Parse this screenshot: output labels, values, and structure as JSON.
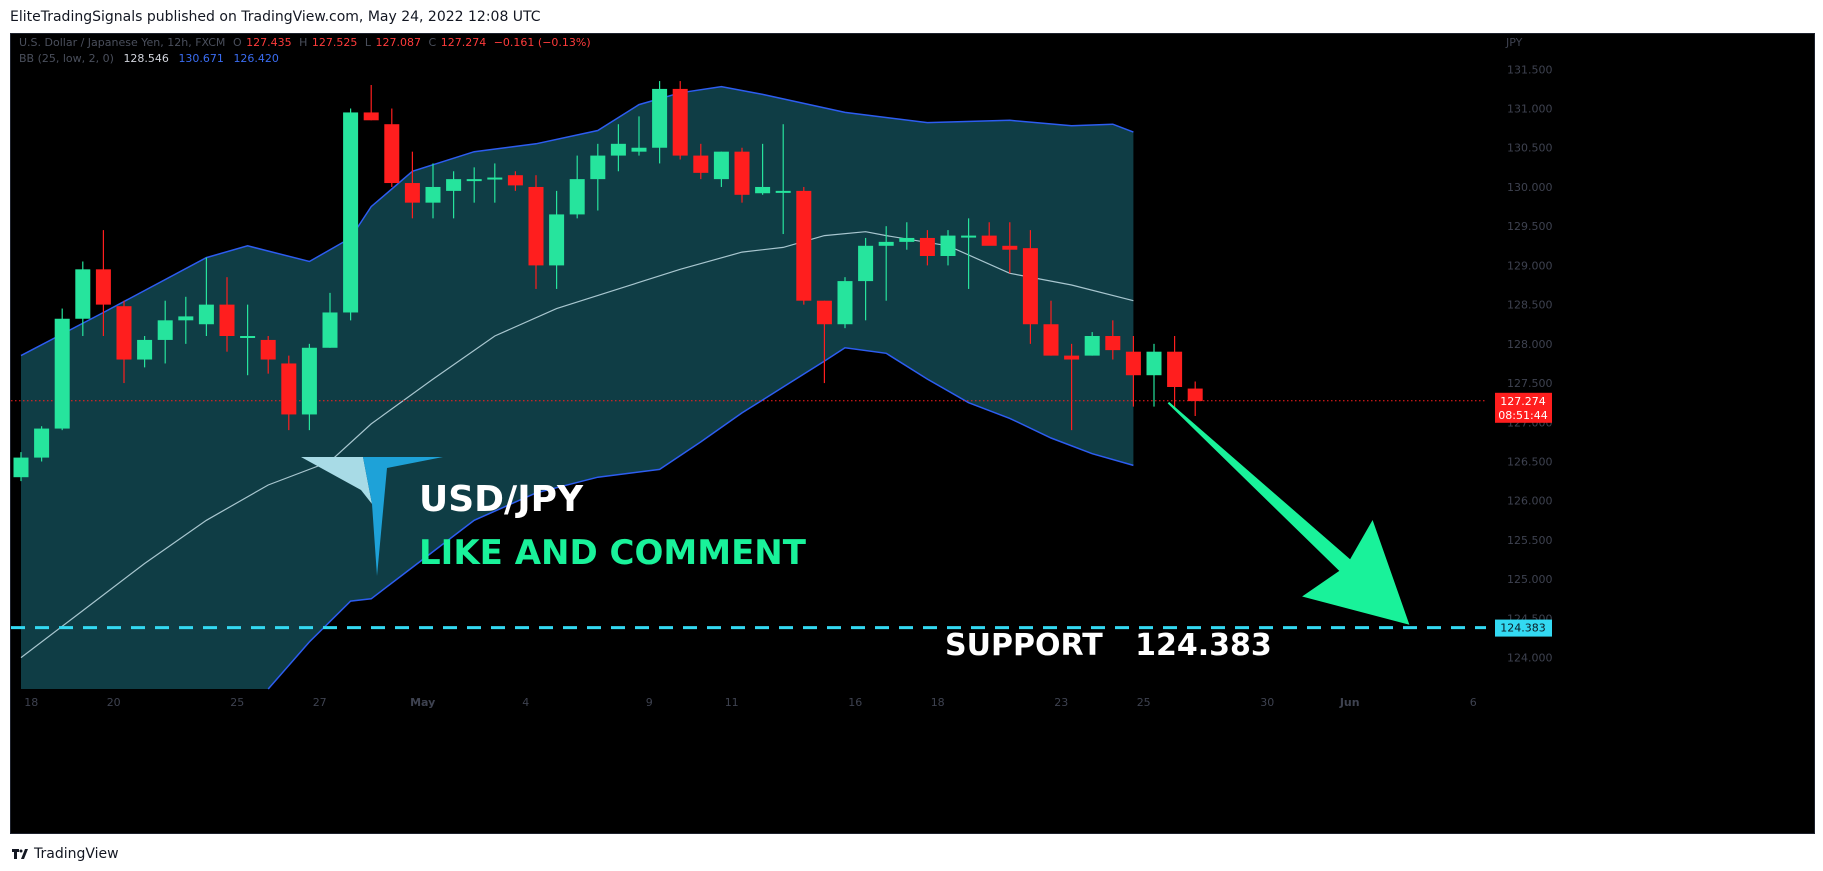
{
  "header": {
    "text": "EliteTradingSignals published on TradingView.com, May 24, 2022 12:08 UTC"
  },
  "footer": {
    "brand": "TradingView"
  },
  "legend": {
    "symbol": "U.S. Dollar / Japanese Yen, 12h, FXCM",
    "o_label": "O",
    "o_value": "127.435",
    "h_label": "H",
    "h_value": "127.525",
    "l_label": "L",
    "l_value": "127.087",
    "c_label": "C",
    "c_value": "127.274",
    "change": "−0.161 (−0.13%)",
    "bb_label": "BB (25, low, 2, 0)",
    "bb_basis": "128.546",
    "bb_upper": "130.671",
    "bb_lower": "126.420"
  },
  "overlay": {
    "pair": "USD/JPY",
    "cta": "LIKE AND COMMENT",
    "support_label": "SUPPORT",
    "support_value": "124.383"
  },
  "price_axis": {
    "currency": "JPY"
  },
  "price_tag": {
    "price": "127.274",
    "countdown": "08:51:44"
  },
  "support_tag": {
    "price": "124.383"
  },
  "colors": {
    "up": "#26e49d",
    "down": "#ff1e1e",
    "band_fill": "#0f3d45",
    "band_line": "#2d5df0",
    "basis_line": "#a8c6cf",
    "support": "#33d9f2",
    "arrow": "#19f29a",
    "price_tag": "#ff1e1e",
    "support_tag": "#33d9f2"
  },
  "chart_data": {
    "type": "candlestick",
    "title": "U.S. Dollar / Japanese Yen, 12h, FXCM",
    "ylim": [
      123.6,
      131.95
    ],
    "y_ticks": [
      "124.000",
      "124.500",
      "125.000",
      "125.500",
      "126.000",
      "126.500",
      "127.000",
      "127.500",
      "128.000",
      "128.500",
      "129.000",
      "129.500",
      "130.000",
      "130.500",
      "131.000",
      "131.500"
    ],
    "x_ticks": [
      {
        "label": "18",
        "x": 0.5
      },
      {
        "label": "20",
        "x": 4.5
      },
      {
        "label": "25",
        "x": 10.5
      },
      {
        "label": "27",
        "x": 14.5
      },
      {
        "label": "May",
        "x": 19.5
      },
      {
        "label": "4",
        "x": 24.5
      },
      {
        "label": "9",
        "x": 30.5
      },
      {
        "label": "11",
        "x": 34.5
      },
      {
        "label": "16",
        "x": 40.5
      },
      {
        "label": "18",
        "x": 44.5
      },
      {
        "label": "23",
        "x": 50.5
      },
      {
        "label": "25",
        "x": 54.5
      },
      {
        "label": "30",
        "x": 60.5
      },
      {
        "label": "Jun",
        "x": 64.5
      },
      {
        "label": "6",
        "x": 70.5
      }
    ],
    "candles": [
      [
        126.3,
        126.62,
        126.25,
        126.55
      ],
      [
        126.55,
        126.95,
        126.5,
        126.92
      ],
      [
        126.92,
        128.45,
        126.9,
        128.32
      ],
      [
        128.32,
        129.05,
        128.1,
        128.95
      ],
      [
        128.95,
        129.45,
        128.1,
        128.5
      ],
      [
        128.48,
        128.55,
        127.5,
        127.8
      ],
      [
        127.8,
        128.1,
        127.7,
        128.05
      ],
      [
        128.05,
        128.55,
        127.75,
        128.3
      ],
      [
        128.3,
        128.6,
        128.0,
        128.35
      ],
      [
        128.25,
        129.1,
        128.1,
        128.5
      ],
      [
        128.5,
        128.85,
        127.9,
        128.1
      ],
      [
        128.1,
        128.5,
        127.6,
        128.1
      ],
      [
        128.05,
        128.1,
        127.62,
        127.8
      ],
      [
        127.75,
        127.85,
        126.9,
        127.1
      ],
      [
        127.1,
        128.0,
        126.9,
        127.95
      ],
      [
        127.95,
        128.65,
        127.95,
        128.4
      ],
      [
        128.4,
        131.0,
        128.3,
        130.95
      ],
      [
        130.95,
        131.3,
        130.85,
        130.85
      ],
      [
        130.8,
        131.0,
        130.0,
        130.05
      ],
      [
        130.05,
        130.45,
        129.6,
        129.8
      ],
      [
        129.8,
        130.3,
        129.6,
        130.0
      ],
      [
        129.95,
        130.2,
        129.6,
        130.1
      ],
      [
        130.1,
        130.25,
        129.8,
        130.1
      ],
      [
        130.12,
        130.3,
        129.8,
        130.12
      ],
      [
        130.15,
        130.2,
        129.95,
        130.02
      ],
      [
        130.0,
        130.15,
        128.7,
        129.0
      ],
      [
        129.0,
        129.95,
        128.7,
        129.65
      ],
      [
        129.65,
        130.4,
        129.6,
        130.1
      ],
      [
        130.1,
        130.55,
        129.7,
        130.4
      ],
      [
        130.4,
        130.8,
        130.2,
        130.55
      ],
      [
        130.45,
        130.9,
        130.4,
        130.5
      ],
      [
        130.5,
        131.35,
        130.3,
        131.25
      ],
      [
        131.25,
        131.35,
        130.35,
        130.4
      ],
      [
        130.4,
        130.55,
        130.1,
        130.18
      ],
      [
        130.1,
        130.45,
        130.0,
        130.45
      ],
      [
        130.45,
        130.5,
        129.8,
        129.9
      ],
      [
        129.92,
        130.55,
        129.9,
        130.0
      ],
      [
        129.95,
        130.8,
        129.4,
        129.95
      ],
      [
        129.95,
        130.0,
        128.5,
        128.55
      ],
      [
        128.55,
        128.55,
        127.5,
        128.25
      ],
      [
        128.25,
        128.85,
        128.2,
        128.8
      ],
      [
        128.8,
        129.35,
        128.3,
        129.25
      ],
      [
        129.25,
        129.5,
        128.55,
        129.3
      ],
      [
        129.3,
        129.55,
        129.2,
        129.35
      ],
      [
        129.35,
        129.45,
        129.0,
        129.12
      ],
      [
        129.12,
        129.45,
        129.0,
        129.38
      ],
      [
        129.38,
        129.6,
        128.7,
        129.38
      ],
      [
        129.38,
        129.55,
        129.3,
        129.25
      ],
      [
        129.25,
        129.55,
        128.9,
        129.2
      ],
      [
        129.22,
        129.45,
        128.0,
        128.25
      ],
      [
        128.25,
        128.55,
        127.85,
        127.85
      ],
      [
        127.85,
        128.0,
        126.9,
        127.8
      ],
      [
        127.85,
        128.15,
        127.85,
        128.1
      ],
      [
        128.1,
        128.3,
        127.8,
        127.92
      ],
      [
        127.9,
        128.1,
        127.2,
        127.6
      ],
      [
        127.6,
        128.0,
        127.2,
        127.9
      ],
      [
        127.9,
        128.1,
        127.18,
        127.45
      ],
      [
        127.43,
        127.52,
        127.08,
        127.27
      ]
    ],
    "bb_upper": [
      [
        0,
        127.85
      ],
      [
        4,
        128.4
      ],
      [
        9,
        129.1
      ],
      [
        11,
        129.25
      ],
      [
        14,
        129.05
      ],
      [
        16,
        129.35
      ],
      [
        17,
        129.75
      ],
      [
        19,
        130.2
      ],
      [
        22,
        130.45
      ],
      [
        25,
        130.55
      ],
      [
        28,
        130.72
      ],
      [
        30,
        131.05
      ],
      [
        32,
        131.2
      ],
      [
        34,
        131.28
      ],
      [
        36,
        131.18
      ],
      [
        40,
        130.95
      ],
      [
        44,
        130.82
      ],
      [
        48,
        130.85
      ],
      [
        51,
        130.78
      ],
      [
        53,
        130.8
      ],
      [
        54,
        130.7
      ]
    ],
    "bb_basis": [
      [
        0,
        124.0
      ],
      [
        3,
        124.6
      ],
      [
        6,
        125.2
      ],
      [
        9,
        125.75
      ],
      [
        12,
        126.2
      ],
      [
        15,
        126.5
      ],
      [
        17,
        126.98
      ],
      [
        20,
        127.55
      ],
      [
        23,
        128.1
      ],
      [
        26,
        128.45
      ],
      [
        29,
        128.7
      ],
      [
        32,
        128.95
      ],
      [
        35,
        129.17
      ],
      [
        37,
        129.23
      ],
      [
        39,
        129.38
      ],
      [
        41,
        129.43
      ],
      [
        42,
        129.38
      ],
      [
        45,
        129.25
      ],
      [
        48,
        128.9
      ],
      [
        51,
        128.75
      ],
      [
        54,
        128.55
      ]
    ],
    "bb_lower": [
      [
        12,
        123.6
      ],
      [
        14,
        124.2
      ],
      [
        16,
        124.72
      ],
      [
        17,
        124.75
      ],
      [
        19,
        125.15
      ],
      [
        22,
        125.75
      ],
      [
        25,
        126.1
      ],
      [
        28,
        126.3
      ],
      [
        31,
        126.4
      ],
      [
        33,
        126.75
      ],
      [
        35,
        127.12
      ],
      [
        37,
        127.45
      ],
      [
        39,
        127.78
      ],
      [
        40,
        127.95
      ],
      [
        42,
        127.88
      ],
      [
        44,
        127.55
      ],
      [
        46,
        127.25
      ],
      [
        48,
        127.05
      ],
      [
        50,
        126.8
      ],
      [
        52,
        126.6
      ],
      [
        54,
        126.45
      ]
    ],
    "last_price": 127.274,
    "support": 124.383,
    "arrow": {
      "from": [
        55.7,
        127.25
      ],
      "to": [
        67.4,
        124.42
      ]
    }
  }
}
